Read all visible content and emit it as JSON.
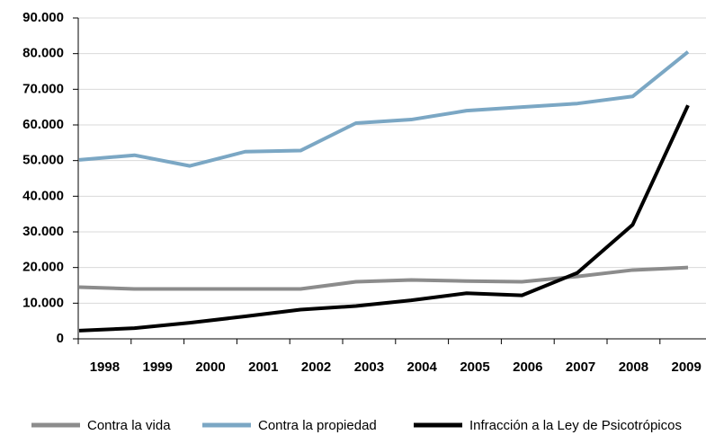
{
  "chart_data": {
    "type": "line",
    "categories": [
      "1998",
      "1999",
      "2000",
      "2001",
      "2002",
      "2003",
      "2004",
      "2005",
      "2006",
      "2007",
      "2008",
      "2009"
    ],
    "series": [
      {
        "name": "Contra la vida",
        "color": "#8c8c8c",
        "values": [
          14500,
          14000,
          14000,
          14000,
          14000,
          16000,
          16500,
          16200,
          16000,
          17500,
          19300,
          20000
        ]
      },
      {
        "name": "Contra la propiedad",
        "color": "#7ba7c4",
        "values": [
          50200,
          51500,
          48500,
          52500,
          52800,
          60500,
          61500,
          64000,
          65000,
          66000,
          68000,
          80500
        ]
      },
      {
        "name": "Infracción a la Ley de Psicotrópicos",
        "color": "#000000",
        "values": [
          2300,
          3000,
          4500,
          6300,
          8200,
          9200,
          10800,
          12800,
          12200,
          18500,
          32000,
          65500
        ]
      }
    ],
    "ylim": [
      0,
      90000
    ],
    "yticks": [
      0,
      {
        "value": 10000,
        "label": "10.000"
      },
      {
        "value": 20000,
        "label": "20.000"
      },
      {
        "value": 30000,
        "label": "30.000"
      },
      {
        "value": 40000,
        "label": "40.000"
      },
      {
        "value": 50000,
        "label": "50.000"
      },
      {
        "value": 60000,
        "label": "60.000"
      },
      {
        "value": 70000,
        "label": "70.000"
      },
      {
        "value": 80000,
        "label": "80.000"
      },
      {
        "value": 90000,
        "label": "90.000"
      }
    ],
    "grid": true
  }
}
